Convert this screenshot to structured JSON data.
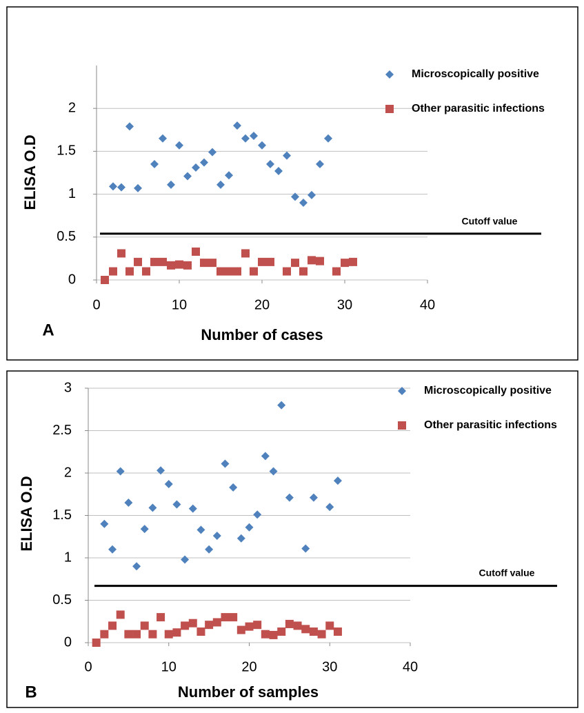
{
  "chart_data": [
    {
      "type": "scatter",
      "panel_label": "A",
      "x_label": "Number of cases",
      "y_label": "ELISA O.D",
      "xlim": [
        0,
        40
      ],
      "xticks": [
        0,
        10,
        20,
        30,
        40
      ],
      "ylim": [
        0,
        2.5
      ],
      "yticks": [
        0,
        0.5,
        1,
        1.5,
        2
      ],
      "grid": true,
      "cutoff": {
        "label": "Cutoff value",
        "value": 0.54
      },
      "series": [
        {
          "name": "Microscopically positive",
          "color": "#4f81bd",
          "marker": "diamond",
          "x": [
            2,
            3,
            4,
            5,
            7,
            8,
            9,
            10,
            11,
            12,
            13,
            14,
            15,
            16,
            17,
            18,
            19,
            20,
            21,
            22,
            23,
            24,
            25,
            26,
            27,
            28
          ],
          "values": [
            1.09,
            1.08,
            1.79,
            1.07,
            1.35,
            1.65,
            1.11,
            1.57,
            1.21,
            1.31,
            1.37,
            1.49,
            1.11,
            1.22,
            1.8,
            1.65,
            1.68,
            1.57,
            1.35,
            1.27,
            1.45,
            0.97,
            0.9,
            0.99,
            1.35,
            1.65
          ]
        },
        {
          "name": "Other parasitic infections",
          "color": "#c0504d",
          "marker": "square",
          "x": [
            1,
            2,
            3,
            4,
            5,
            6,
            7,
            8,
            9,
            10,
            11,
            12,
            13,
            14,
            15,
            16,
            17,
            18,
            19,
            20,
            21,
            23,
            24,
            25,
            26,
            27,
            29,
            30,
            31
          ],
          "values": [
            0,
            0.1,
            0.31,
            0.1,
            0.21,
            0.1,
            0.21,
            0.21,
            0.17,
            0.18,
            0.17,
            0.33,
            0.2,
            0.2,
            0.1,
            0.1,
            0.1,
            0.31,
            0.1,
            0.21,
            0.21,
            0.1,
            0.2,
            0.1,
            0.23,
            0.22,
            0.1,
            0.2,
            0.21
          ]
        }
      ]
    },
    {
      "type": "scatter",
      "panel_label": "B",
      "x_label": "Number of samples",
      "y_label": "ELISA O.D",
      "xlim": [
        0,
        40
      ],
      "xticks": [
        0,
        10,
        20,
        30,
        40
      ],
      "ylim": [
        0,
        3
      ],
      "yticks": [
        0,
        0.5,
        1,
        1.5,
        2,
        2.5,
        3
      ],
      "grid": true,
      "cutoff": {
        "label": "Cutoff value",
        "value": 0.67
      },
      "series": [
        {
          "name": "Microscopically positive",
          "color": "#4f81bd",
          "marker": "diamond",
          "x": [
            2,
            3,
            4,
            5,
            6,
            7,
            8,
            9,
            10,
            11,
            12,
            13,
            14,
            15,
            16,
            17,
            18,
            19,
            20,
            21,
            22,
            23,
            24,
            25,
            27,
            28,
            30,
            31
          ],
          "values": [
            1.4,
            1.1,
            2.02,
            1.65,
            0.9,
            1.34,
            1.59,
            2.03,
            1.87,
            1.63,
            0.98,
            1.58,
            1.33,
            1.1,
            1.26,
            2.11,
            1.83,
            1.23,
            1.36,
            1.51,
            2.2,
            2.02,
            2.8,
            1.71,
            1.11,
            1.71,
            1.6,
            1.91
          ]
        },
        {
          "name": "Other parasitic infections",
          "color": "#c0504d",
          "marker": "square",
          "x": [
            1,
            2,
            3,
            4,
            5,
            6,
            7,
            8,
            9,
            10,
            11,
            12,
            13,
            14,
            15,
            16,
            17,
            18,
            19,
            20,
            21,
            22,
            23,
            24,
            25,
            26,
            27,
            28,
            29,
            30,
            31
          ],
          "values": [
            0,
            0.1,
            0.2,
            0.33,
            0.1,
            0.1,
            0.2,
            0.1,
            0.3,
            0.1,
            0.12,
            0.2,
            0.23,
            0.13,
            0.21,
            0.24,
            0.3,
            0.3,
            0.15,
            0.19,
            0.21,
            0.1,
            0.09,
            0.13,
            0.22,
            0.2,
            0.16,
            0.13,
            0.1,
            0.2,
            0.13
          ]
        }
      ]
    }
  ]
}
